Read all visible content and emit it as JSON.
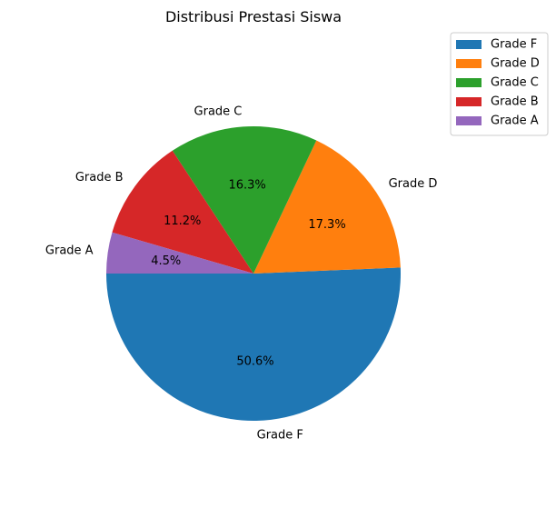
{
  "chart_data": {
    "type": "pie",
    "title": "Distribusi Prestasi Siswa",
    "categories": [
      "Grade F",
      "Grade D",
      "Grade C",
      "Grade B",
      "Grade A"
    ],
    "values": [
      50.6,
      17.3,
      16.3,
      11.2,
      4.5
    ],
    "percent_labels": [
      "50.6%",
      "17.3%",
      "16.3%",
      "11.2%",
      "4.5%"
    ],
    "colors": [
      "#1f77b4",
      "#ff7f0e",
      "#2ca02c",
      "#d62728",
      "#9467bd"
    ],
    "start_angle_deg": 180,
    "direction": "counterclockwise",
    "legend": {
      "position": "top-right",
      "entries": [
        "Grade F",
        "Grade D",
        "Grade C",
        "Grade B",
        "Grade A"
      ]
    }
  }
}
